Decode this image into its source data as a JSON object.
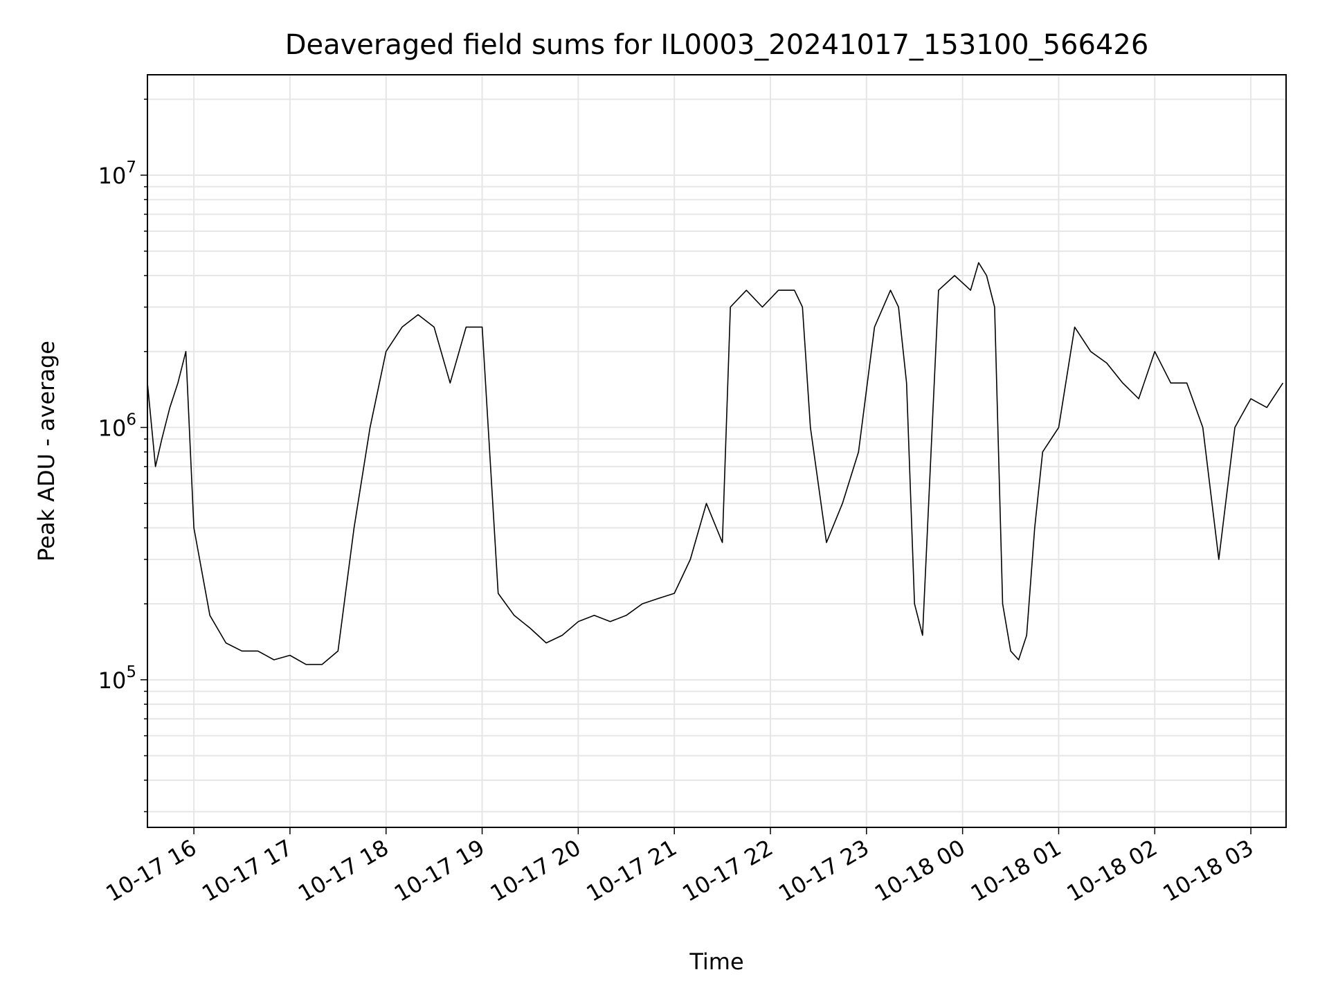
{
  "chart_data": {
    "type": "line",
    "title": "Deaveraged field sums for IL0003_20241017_153100_566426",
    "xlabel": "Time",
    "ylabel": "Peak ADU - average",
    "yscale": "log",
    "ylim": [
      26000,
      25000000
    ],
    "xlim": [
      "2024-10-17 15:31",
      "2024-10-18 03:22"
    ],
    "grid": true,
    "x_ticks": [
      "10-17 16",
      "10-17 17",
      "10-17 18",
      "10-17 19",
      "10-17 20",
      "10-17 21",
      "10-17 22",
      "10-17 23",
      "10-18 00",
      "10-18 01",
      "10-18 02",
      "10-18 03"
    ],
    "x_tick_times": [
      "2024-10-17 16:00",
      "2024-10-17 17:00",
      "2024-10-17 18:00",
      "2024-10-17 19:00",
      "2024-10-17 20:00",
      "2024-10-17 21:00",
      "2024-10-17 22:00",
      "2024-10-17 23:00",
      "2024-10-18 00:00",
      "2024-10-18 01:00",
      "2024-10-18 02:00",
      "2024-10-18 03:00"
    ],
    "y_ticks": [
      {
        "base": "10",
        "exp": "5",
        "value": 100000
      },
      {
        "base": "10",
        "exp": "6",
        "value": 1000000
      },
      {
        "base": "10",
        "exp": "7",
        "value": 10000000
      }
    ],
    "series": [
      {
        "color": "#000000",
        "x": [
          "2024-10-17 15:31",
          "2024-10-17 15:36",
          "2024-10-17 15:40",
          "2024-10-17 15:45",
          "2024-10-17 15:50",
          "2024-10-17 15:55",
          "2024-10-17 16:00",
          "2024-10-17 16:10",
          "2024-10-17 16:20",
          "2024-10-17 16:30",
          "2024-10-17 16:40",
          "2024-10-17 16:50",
          "2024-10-17 17:00",
          "2024-10-17 17:10",
          "2024-10-17 17:20",
          "2024-10-17 17:30",
          "2024-10-17 17:40",
          "2024-10-17 17:50",
          "2024-10-17 18:00",
          "2024-10-17 18:10",
          "2024-10-17 18:20",
          "2024-10-17 18:30",
          "2024-10-17 18:40",
          "2024-10-17 18:50",
          "2024-10-17 19:00",
          "2024-10-17 19:10",
          "2024-10-17 19:20",
          "2024-10-17 19:30",
          "2024-10-17 19:40",
          "2024-10-17 19:50",
          "2024-10-17 20:00",
          "2024-10-17 20:10",
          "2024-10-17 20:20",
          "2024-10-17 20:30",
          "2024-10-17 20:40",
          "2024-10-17 20:50",
          "2024-10-17 21:00",
          "2024-10-17 21:10",
          "2024-10-17 21:20",
          "2024-10-17 21:30",
          "2024-10-17 21:35",
          "2024-10-17 21:45",
          "2024-10-17 21:55",
          "2024-10-17 22:05",
          "2024-10-17 22:15",
          "2024-10-17 22:20",
          "2024-10-17 22:25",
          "2024-10-17 22:35",
          "2024-10-17 22:45",
          "2024-10-17 22:55",
          "2024-10-17 23:05",
          "2024-10-17 23:15",
          "2024-10-17 23:20",
          "2024-10-17 23:25",
          "2024-10-17 23:30",
          "2024-10-17 23:35",
          "2024-10-17 23:45",
          "2024-10-17 23:55",
          "2024-10-18 00:05",
          "2024-10-18 00:10",
          "2024-10-18 00:15",
          "2024-10-18 00:20",
          "2024-10-18 00:25",
          "2024-10-18 00:30",
          "2024-10-18 00:35",
          "2024-10-18 00:40",
          "2024-10-18 00:45",
          "2024-10-18 00:50",
          "2024-10-18 01:00",
          "2024-10-18 01:10",
          "2024-10-18 01:20",
          "2024-10-18 01:30",
          "2024-10-18 01:40",
          "2024-10-18 01:50",
          "2024-10-18 02:00",
          "2024-10-18 02:10",
          "2024-10-18 02:20",
          "2024-10-18 02:30",
          "2024-10-18 02:40",
          "2024-10-18 02:50",
          "2024-10-18 03:00",
          "2024-10-18 03:10",
          "2024-10-18 03:20"
        ],
        "y": [
          1500000,
          700000,
          900000,
          1200000,
          1500000,
          2000000,
          400000,
          180000,
          140000,
          130000,
          130000,
          120000,
          125000,
          115000,
          115000,
          130000,
          400000,
          1000000,
          2000000,
          2500000,
          2800000,
          2500000,
          1500000,
          2500000,
          2500000,
          220000,
          180000,
          160000,
          140000,
          150000,
          170000,
          180000,
          170000,
          180000,
          200000,
          210000,
          220000,
          300000,
          500000,
          350000,
          3000000,
          3500000,
          3000000,
          3500000,
          3500000,
          3000000,
          1000000,
          350000,
          500000,
          800000,
          2500000,
          3500000,
          3000000,
          1500000,
          200000,
          150000,
          3500000,
          4000000,
          3500000,
          4500000,
          4000000,
          3000000,
          200000,
          130000,
          120000,
          150000,
          400000,
          800000,
          1000000,
          2500000,
          2000000,
          1800000,
          1500000,
          1300000,
          2000000,
          1500000,
          1500000,
          1000000,
          300000,
          1000000,
          1300000,
          1200000,
          1500000
        ]
      }
    ]
  }
}
